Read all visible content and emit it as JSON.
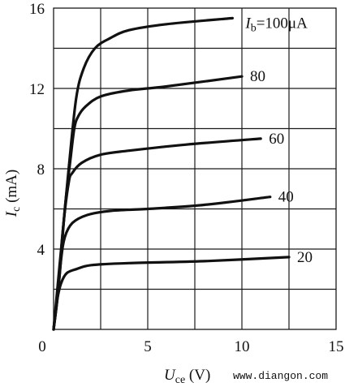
{
  "chart_data": {
    "type": "line",
    "ylabel": {
      "symbol": "I",
      "subscript": "c",
      "unit": " (mA)"
    },
    "xlabel": {
      "symbol": "U",
      "subscript": "ce",
      "unit": " (V)"
    },
    "xlim": [
      0,
      15
    ],
    "ylim": [
      0,
      16
    ],
    "xticks": [
      "0",
      "5",
      "10",
      "15"
    ],
    "yticks": [
      "4",
      "8",
      "12",
      "16"
    ],
    "grid": true,
    "series": [
      {
        "name": "100",
        "label_prefix": "I",
        "label_subscript": "b",
        "label_text": "=100μA",
        "points": [
          [
            0,
            0
          ],
          [
            0.4,
            4
          ],
          [
            0.8,
            8
          ],
          [
            1.2,
            11.5
          ],
          [
            1.6,
            13
          ],
          [
            2.2,
            14
          ],
          [
            3,
            14.5
          ],
          [
            4,
            14.9
          ],
          [
            6,
            15.2
          ],
          [
            9.5,
            15.5
          ]
        ]
      },
      {
        "name": "80",
        "label_text": "80",
        "points": [
          [
            0,
            0
          ],
          [
            0.3,
            2.5
          ],
          [
            0.6,
            6
          ],
          [
            0.9,
            8.5
          ],
          [
            1.1,
            10
          ],
          [
            1.3,
            10.6
          ],
          [
            1.7,
            11.1
          ],
          [
            2.5,
            11.6
          ],
          [
            4,
            11.9
          ],
          [
            6,
            12.1
          ],
          [
            10,
            12.6
          ]
        ]
      },
      {
        "name": "60",
        "label_text": "60",
        "points": [
          [
            0,
            0
          ],
          [
            0.25,
            2
          ],
          [
            0.5,
            5
          ],
          [
            0.8,
            7.3
          ],
          [
            1,
            7.8
          ],
          [
            1.5,
            8.3
          ],
          [
            2.5,
            8.7
          ],
          [
            4,
            8.9
          ],
          [
            7,
            9.2
          ],
          [
            11,
            9.5
          ]
        ]
      },
      {
        "name": "40",
        "label_text": "40",
        "points": [
          [
            0,
            0
          ],
          [
            0.2,
            1.5
          ],
          [
            0.4,
            3.5
          ],
          [
            0.6,
            4.6
          ],
          [
            1,
            5.3
          ],
          [
            1.8,
            5.7
          ],
          [
            3,
            5.9
          ],
          [
            5,
            6.0
          ],
          [
            8,
            6.2
          ],
          [
            11.5,
            6.6
          ]
        ]
      },
      {
        "name": "20",
        "label_text": "20",
        "points": [
          [
            0,
            0
          ],
          [
            0.2,
            1.5
          ],
          [
            0.4,
            2.3
          ],
          [
            0.7,
            2.8
          ],
          [
            1.2,
            3.0
          ],
          [
            2,
            3.2
          ],
          [
            4,
            3.3
          ],
          [
            8,
            3.4
          ],
          [
            12.5,
            3.6
          ]
        ]
      }
    ]
  },
  "watermark": "www.diangon.com",
  "colors": {
    "line": "#111111",
    "grid": "#1a1a1a",
    "background": "#ffffff"
  }
}
